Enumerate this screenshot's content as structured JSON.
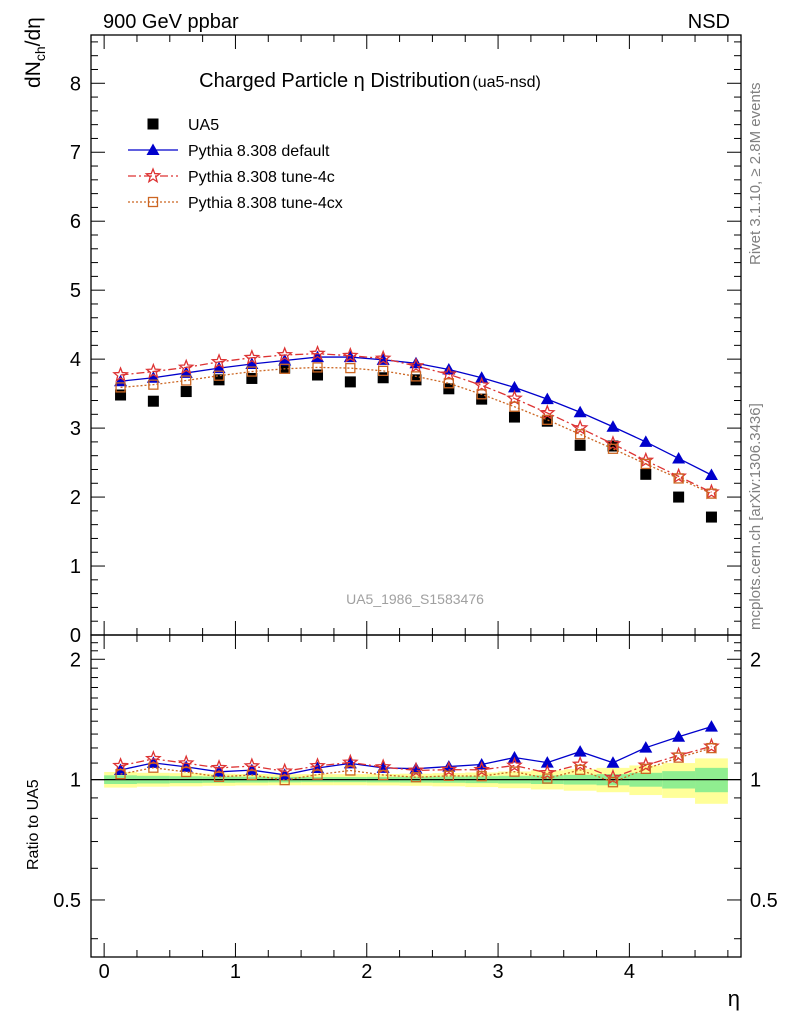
{
  "header": {
    "left": "900 GeV ppbar",
    "right": "NSD"
  },
  "side_labels": {
    "top": "Rivet 3.1.10, ≥ 2.8M events",
    "bottom": "mcplots.cern.ch [arXiv:1306.3436]"
  },
  "chart_data": [
    {
      "type": "scatter",
      "title": "Charged Particle η Distribution",
      "subtitle": "(ua5-nsd)",
      "ylabel": "dN_ch/dη",
      "xlabel": "η",
      "annotation": "UA5_1986_S1583476",
      "xlim": [
        -0.1,
        4.85
      ],
      "ylim": [
        0,
        8.7
      ],
      "yticks": [
        0,
        1,
        2,
        3,
        4,
        5,
        6,
        7,
        8
      ],
      "grid": false,
      "legend_position": "top-left",
      "x": [
        0.125,
        0.375,
        0.625,
        0.875,
        1.125,
        1.375,
        1.625,
        1.875,
        2.125,
        2.375,
        2.625,
        2.875,
        3.125,
        3.375,
        3.625,
        3.875,
        4.125,
        4.375,
        4.625
      ],
      "series": [
        {
          "name": "UA5",
          "marker": "square",
          "color": "#000000",
          "values": [
            3.48,
            3.39,
            3.53,
            3.7,
            3.72,
            3.87,
            3.77,
            3.67,
            3.73,
            3.7,
            3.57,
            3.42,
            3.16,
            3.1,
            2.75,
            2.74,
            2.33,
            2.0,
            1.71
          ]
        },
        {
          "name": "Pythia 8.308 default",
          "marker": "triangle",
          "color": "#0000cc",
          "dash": "",
          "values": [
            3.68,
            3.73,
            3.8,
            3.87,
            3.93,
            3.98,
            4.03,
            4.03,
            3.99,
            3.94,
            3.85,
            3.73,
            3.59,
            3.42,
            3.23,
            3.02,
            2.8,
            2.56,
            2.32
          ]
        },
        {
          "name": "Pythia 8.308 tune-4c",
          "marker": "star",
          "color": "#dd3333",
          "dash": "8,3,2,3",
          "values": [
            3.77,
            3.82,
            3.88,
            3.96,
            4.02,
            4.06,
            4.08,
            4.05,
            4.01,
            3.9,
            3.78,
            3.62,
            3.43,
            3.22,
            3.0,
            2.77,
            2.53,
            2.3,
            2.07
          ]
        },
        {
          "name": "Pythia 8.308 tune-4cx",
          "marker": "open-square",
          "color": "#cc6622",
          "dash": "2,2",
          "values": [
            3.59,
            3.63,
            3.69,
            3.76,
            3.82,
            3.86,
            3.88,
            3.87,
            3.83,
            3.75,
            3.65,
            3.49,
            3.31,
            3.12,
            2.91,
            2.7,
            2.48,
            2.27,
            2.05
          ]
        }
      ]
    },
    {
      "type": "scatter",
      "ylabel": "Ratio to UA5",
      "xlabel": "η",
      "xlim": [
        -0.1,
        4.85
      ],
      "ylim": [
        0.36,
        2.3
      ],
      "yscale": "log",
      "yticks": [
        0.5,
        1,
        2
      ],
      "xticks": [
        0,
        1,
        2,
        3,
        4
      ],
      "reference_line": 1,
      "band_colors": {
        "inner": "#90ee90",
        "outer": "#ffff99"
      },
      "band_edges": [
        0.0,
        0.25,
        0.5,
        0.75,
        1.0,
        1.25,
        1.5,
        1.75,
        2.0,
        2.25,
        2.5,
        2.75,
        3.0,
        3.25,
        3.5,
        3.75,
        4.0,
        4.25,
        4.5,
        4.75
      ],
      "band_inner": [
        0.025,
        0.022,
        0.02,
        0.018,
        0.017,
        0.016,
        0.015,
        0.015,
        0.016,
        0.017,
        0.018,
        0.02,
        0.022,
        0.025,
        0.028,
        0.032,
        0.04,
        0.05,
        0.07
      ],
      "band_outer": [
        0.045,
        0.04,
        0.038,
        0.035,
        0.033,
        0.032,
        0.032,
        0.032,
        0.033,
        0.035,
        0.038,
        0.042,
        0.048,
        0.055,
        0.062,
        0.07,
        0.085,
        0.1,
        0.13
      ],
      "series": [
        {
          "name": "Pythia 8.308 default",
          "values": [
            1.057,
            1.101,
            1.076,
            1.046,
            1.056,
            1.028,
            1.069,
            1.098,
            1.07,
            1.065,
            1.078,
            1.091,
            1.136,
            1.103,
            1.175,
            1.102,
            1.202,
            1.28,
            1.357
          ]
        },
        {
          "name": "Pythia 8.308 tune-4c",
          "values": [
            1.083,
            1.127,
            1.099,
            1.07,
            1.081,
            1.049,
            1.082,
            1.104,
            1.075,
            1.054,
            1.059,
            1.058,
            1.085,
            1.039,
            1.091,
            1.011,
            1.086,
            1.15,
            1.211
          ]
        },
        {
          "name": "Pythia 8.308 tune-4cx",
          "values": [
            1.032,
            1.071,
            1.045,
            1.016,
            1.027,
            0.997,
            1.029,
            1.054,
            1.027,
            1.014,
            1.022,
            1.02,
            1.047,
            1.006,
            1.058,
            0.985,
            1.064,
            1.135,
            1.199
          ]
        }
      ]
    }
  ]
}
